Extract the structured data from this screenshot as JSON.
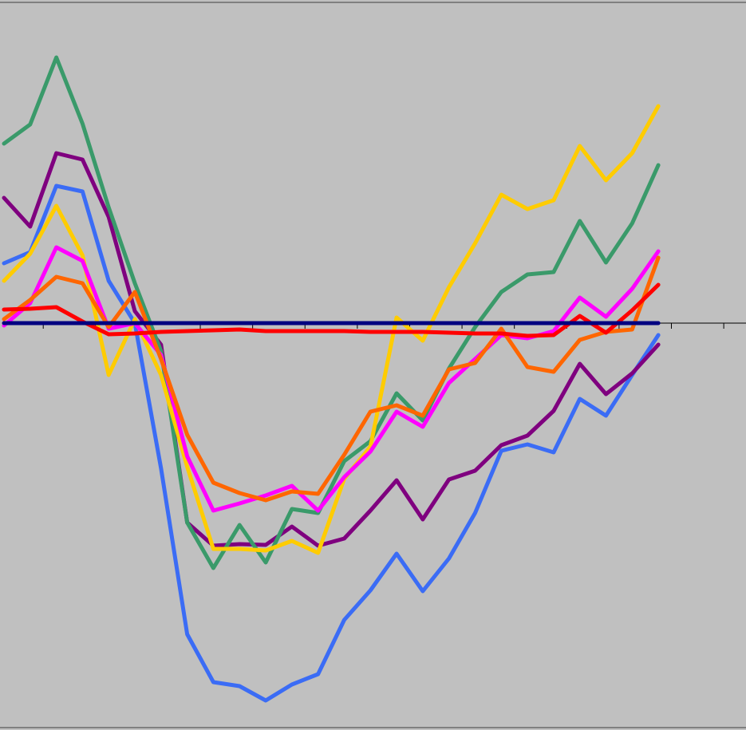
{
  "chart_data": {
    "type": "line",
    "x": [
      1,
      2,
      3,
      4,
      5,
      6,
      7,
      8,
      9,
      10,
      11,
      12,
      13,
      14,
      15,
      16,
      17,
      18,
      19,
      20,
      21,
      22,
      23,
      24,
      25,
      26
    ],
    "xlim": [
      1,
      29.35
    ],
    "xticks": [
      2.5,
      4.5,
      6.5,
      8.5,
      10.5,
      12.5,
      14.5,
      16.5,
      18.5,
      20.5,
      22.5,
      24.5,
      26.5,
      28.5
    ],
    "ylim": [
      -50,
      40
    ],
    "series": [
      {
        "color": "#3b6cf5",
        "values": [
          7.5,
          8.9,
          17.2,
          16.5,
          5.3,
          0,
          -18.2,
          -39.0,
          -45.0,
          -45.5,
          -47.3,
          -45.3,
          -44.0,
          -37.2,
          -33.5,
          -28.9,
          -33.6,
          -29.5,
          -23.8,
          -16.0,
          -15.2,
          -16.2,
          -9.5,
          -11.6,
          -6.5,
          -1.5
        ]
      },
      {
        "color": "#7f007f",
        "values": [
          15.7,
          12.1,
          21.3,
          20.5,
          13.3,
          1.5,
          -2.7,
          -25.0,
          -27.9,
          -27.7,
          -27.8,
          -25.5,
          -27.9,
          -27.0,
          -23.5,
          -19.7,
          -24.6,
          -19.6,
          -18.5,
          -15.3,
          -14.1,
          -11.0,
          -5.1,
          -8.9,
          -6.3,
          -2.7
        ]
      },
      {
        "color": "#3a9a6a",
        "values": [
          22.5,
          24.9,
          33.3,
          25.0,
          14.5,
          5.0,
          -3.5,
          -25.0,
          -30.7,
          -25.3,
          -30.0,
          -23.3,
          -23.8,
          -17.3,
          -14.8,
          -8.8,
          -12.2,
          -5.7,
          -0.5,
          3.9,
          6.1,
          6.4,
          12.8,
          7.6,
          12.5,
          19.8
        ]
      },
      {
        "color": "#ffcc00",
        "values": [
          5.3,
          8.7,
          14.7,
          8.5,
          -6.5,
          0.5,
          -6.5,
          -18.0,
          -28.3,
          -28.3,
          -28.5,
          -27.3,
          -28.8,
          -19.5,
          -15.5,
          0.7,
          -2.2,
          4.5,
          10.0,
          16.1,
          14.3,
          15.4,
          22.2,
          17.9,
          21.3,
          27.2
        ]
      },
      {
        "color": "#ff00ff",
        "values": [
          -0.3,
          2.5,
          9.5,
          7.8,
          -0.7,
          0,
          -4.0,
          -16.7,
          -23.5,
          -22.6,
          -21.6,
          -20.4,
          -23.5,
          -19.3,
          -16.1,
          -11.1,
          -13.0,
          -7.5,
          -4.5,
          -1.5,
          -1.9,
          -1.0,
          3.2,
          0.8,
          4.3,
          9.0
        ]
      },
      {
        "color": "#ff6600",
        "values": [
          0.5,
          2.9,
          5.8,
          5.0,
          -0.5,
          3.9,
          -4.5,
          -14.0,
          -20.0,
          -21.3,
          -22.2,
          -21.1,
          -21.4,
          -16.5,
          -11.1,
          -10.3,
          -11.6,
          -5.8,
          -5.0,
          -0.7,
          -5.5,
          -6.1,
          -2.1,
          -1.1,
          -0.8,
          8.2
        ]
      },
      {
        "color": "#ff0000",
        "values": [
          1.7,
          1.8,
          2.0,
          0.2,
          -1.4,
          -1.3,
          -1.1,
          -1.0,
          -0.9,
          -0.8,
          -1.0,
          -1.0,
          -1.0,
          -1.0,
          -1.1,
          -1.1,
          -1.1,
          -1.2,
          -1.3,
          -1.3,
          -1.6,
          -1.5,
          0.9,
          -1.2,
          1.6,
          4.8
        ]
      },
      {
        "color": "#000080",
        "values": [
          0,
          0,
          0,
          0,
          0,
          0,
          0,
          0,
          0,
          0,
          0,
          0,
          0,
          0,
          0,
          0,
          0,
          0,
          0,
          0,
          0,
          0,
          0,
          0,
          0,
          0
        ]
      }
    ]
  }
}
